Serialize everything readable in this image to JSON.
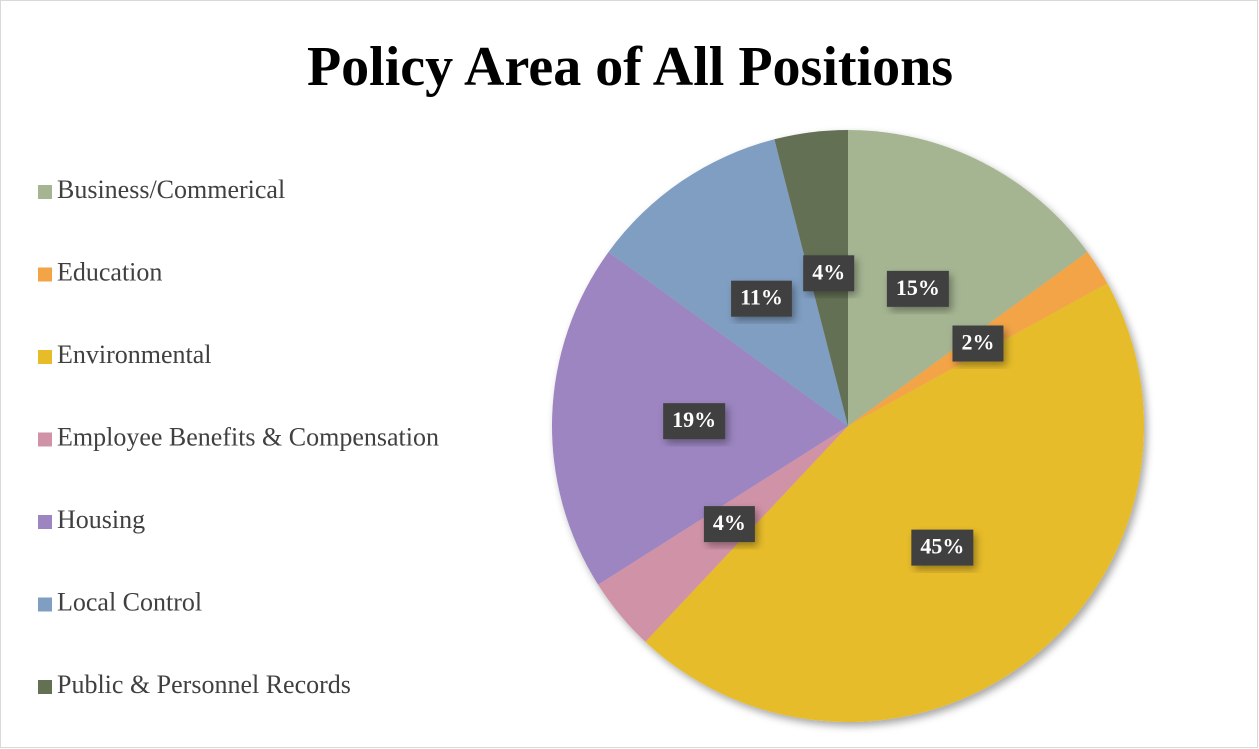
{
  "chart_data": {
    "type": "pie",
    "title": "Policy Area of All Positions",
    "categories": [
      "Business/Commerical",
      "Education",
      "Environmental",
      "Employee Benefits & Compensation",
      "Housing",
      "Local Control",
      "Public & Personnel Records"
    ],
    "values": [
      15,
      2,
      45,
      4,
      19,
      11,
      4
    ],
    "value_labels": [
      "15%",
      "2%",
      "45%",
      "4%",
      "19%",
      "11%",
      "4%"
    ],
    "colors": [
      "#a5b592",
      "#f3a447",
      "#e7bc29",
      "#d092a7",
      "#9c85c0",
      "#809ec2",
      "#637052"
    ],
    "legend": "left"
  }
}
